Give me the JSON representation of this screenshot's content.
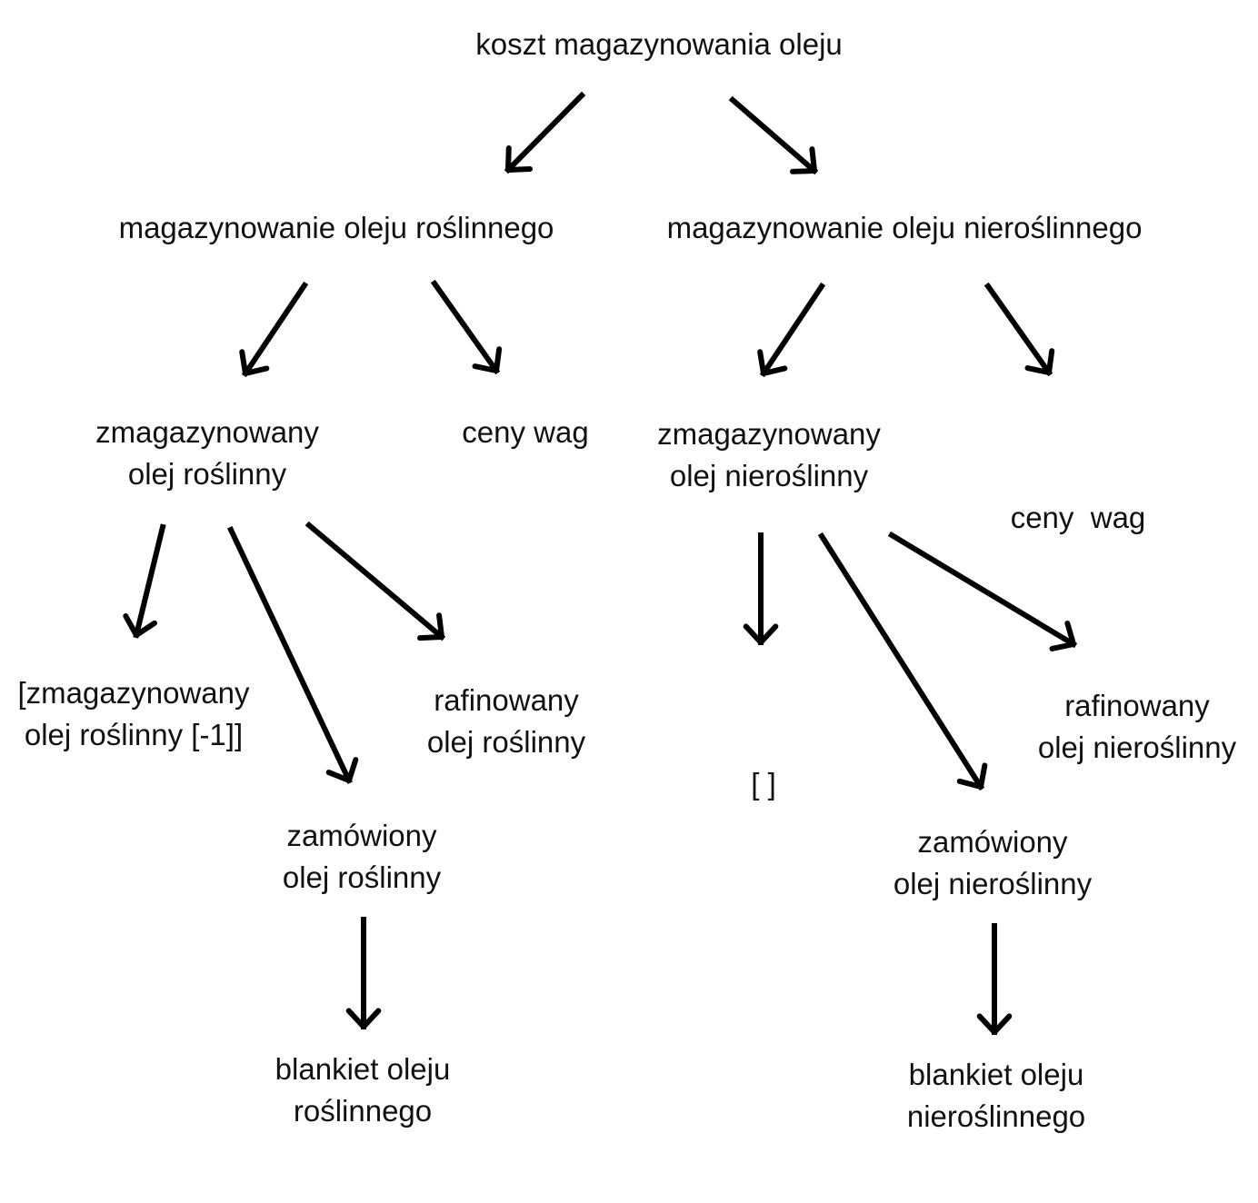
{
  "diagram": {
    "root": {
      "label": "koszt magazynowania oleju"
    },
    "branches": [
      {
        "id": "plant",
        "label": "magazynowanie oleju roślinnego",
        "children": {
          "stored": {
            "line1": "zmagazynowany",
            "line2": "olej roślinny"
          },
          "prices": {
            "label": "ceny wag"
          },
          "previous": {
            "line1": "[zmagazynowany",
            "line2": "olej roślinny [-1]]"
          },
          "ordered": {
            "line1": "zamówiony",
            "line2": "olej roślinny"
          },
          "refined": {
            "line1": "rafinowany",
            "line2": "olej roślinny"
          },
          "blanket": {
            "line1": "blankiet oleju",
            "line2": "roślinnego"
          }
        }
      },
      {
        "id": "nonplant",
        "label": "magazynowanie oleju nieroślinnego",
        "children": {
          "stored": {
            "line1": "zmagazynowany",
            "line2": "olej nieroślinny"
          },
          "prices": {
            "label": "ceny  wag"
          },
          "previous": {
            "label": "[ ]"
          },
          "ordered": {
            "line1": "zamówiony",
            "line2": "olej nieroślinny"
          },
          "refined": {
            "line1": "rafinowany",
            "line2": "olej nieroślinny"
          },
          "blanket": {
            "line1": "blankiet oleju",
            "line2": "nieroślinnego"
          }
        }
      }
    ],
    "arrow_color": "#000000",
    "text_color": "#111111"
  }
}
